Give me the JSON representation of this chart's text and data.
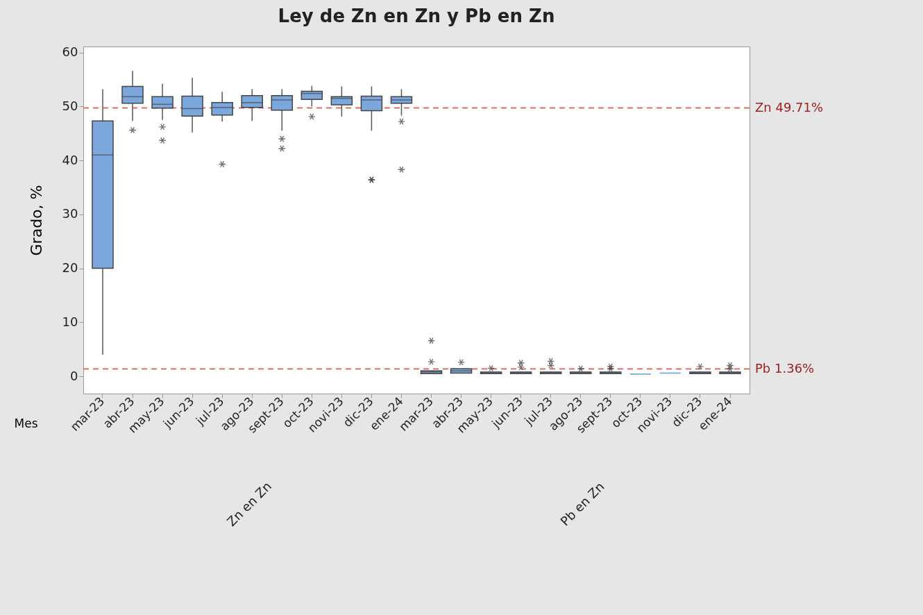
{
  "chart_data": {
    "type": "box",
    "title": "Ley de Zn en Zn y Pb en Zn",
    "xlabel": "Mes",
    "ylabel": "Grado, %",
    "categories": [
      "mar-23",
      "abr-23",
      "may-23",
      "jun-23",
      "jul-23",
      "ago-23",
      "sept-23",
      "oct-23",
      "novi-23",
      "dic-23",
      "ene-24",
      "mar-23",
      "abr-23",
      "may-23",
      "jun-23",
      "jul-23",
      "ago-23",
      "sept-23",
      "oct-23",
      "novi-23",
      "dic-23",
      "ene-24"
    ],
    "ylim": [
      -3.2,
      61.1
    ],
    "yticks": [
      0,
      10,
      20,
      30,
      40,
      50,
      60
    ],
    "grid": false,
    "series": [
      {
        "color": "#7ba7dc",
        "boxes": [
          {
            "low": 4,
            "q1": 20,
            "median": 41,
            "q3": 47.3,
            "high": 53.2
          },
          {
            "low": 47.3,
            "q1": 50.6,
            "median": 51.8,
            "q3": 53.7,
            "high": 56.6,
            "outliers": [
              45.6
            ]
          },
          {
            "low": 47.5,
            "q1": 49.7,
            "median": 50.4,
            "q3": 51.8,
            "high": 54.2,
            "outliers": [
              46.2,
              43.7
            ]
          },
          {
            "low": 45.2,
            "q1": 48.2,
            "median": 49.6,
            "q3": 51.9,
            "high": 55.3
          },
          {
            "low": 47.2,
            "q1": 48.4,
            "median": 49.8,
            "q3": 50.7,
            "high": 52.7,
            "outliers": [
              39.3
            ]
          },
          {
            "low": 47.3,
            "q1": 49.8,
            "median": 50.7,
            "q3": 52,
            "high": 53.2
          },
          {
            "low": 45.5,
            "q1": 49.3,
            "median": 51.2,
            "q3": 52,
            "high": 53.2,
            "outliers": [
              44,
              42.2
            ]
          },
          {
            "low": 50,
            "q1": 51.3,
            "median": 52.4,
            "q3": 52.8,
            "high": 53.8,
            "outliers": [
              48.1
            ]
          },
          {
            "low": 48.1,
            "q1": 50.3,
            "median": 51.5,
            "q3": 51.8,
            "high": 53.7
          },
          {
            "low": 45.5,
            "q1": 49.2,
            "median": 51.2,
            "q3": 51.9,
            "high": 53.7,
            "outliers": [
              36.4,
              36.4
            ]
          },
          {
            "low": 48.3,
            "q1": 50.6,
            "median": 51.2,
            "q3": 51.8,
            "high": 53.2,
            "outliers": [
              47.2,
              38.3
            ]
          },
          {
            "low": 0.5,
            "q1": 0.5,
            "median": 0.8,
            "q3": 1,
            "high": 1,
            "outliers": [
              6.6,
              2.7
            ]
          },
          {
            "low": 0.6,
            "q1": 0.6,
            "median": 1,
            "q3": 1.4,
            "high": 1.4,
            "outliers": [
              2.6
            ]
          },
          {
            "low": 0.5,
            "q1": 0.5,
            "median": 0.7,
            "q3": 0.8,
            "high": 0.8,
            "outliers": [
              1.5
            ]
          },
          {
            "low": 0.5,
            "q1": 0.5,
            "median": 0.7,
            "q3": 0.8,
            "high": 0.8,
            "outliers": [
              2.5,
              1.7
            ]
          },
          {
            "low": 0.5,
            "q1": 0.5,
            "median": 0.7,
            "q3": 0.8,
            "high": 0.8,
            "outliers": [
              2.8,
              2
            ]
          },
          {
            "low": 0.5,
            "q1": 0.5,
            "median": 0.7,
            "q3": 0.8,
            "high": 0.8,
            "outliers": [
              1.4
            ]
          },
          {
            "low": 0.5,
            "q1": 0.5,
            "median": 0.7,
            "q3": 0.8,
            "high": 0.8,
            "outliers": [
              1.8,
              1.4
            ]
          },
          {
            "low": 0.4,
            "q1": 0.4,
            "median": 0.4,
            "q3": 0.4,
            "high": 0.4
          },
          {
            "low": 0.6,
            "q1": 0.6,
            "median": 0.6,
            "q3": 0.6,
            "high": 0.6
          },
          {
            "low": 0.5,
            "q1": 0.5,
            "median": 0.7,
            "q3": 0.8,
            "high": 0.8,
            "outliers": [
              1.8
            ]
          },
          {
            "low": 0.5,
            "q1": 0.5,
            "median": 0.7,
            "q3": 0.8,
            "high": 0.8,
            "outliers": [
              2,
              1.4
            ]
          }
        ]
      }
    ],
    "ref_lines": [
      {
        "axis": "y",
        "value": 49.71,
        "label": "Zn 49.71%",
        "color": "#e8413c",
        "line_style": "dashed"
      },
      {
        "axis": "y",
        "value": 1.36,
        "label": "Pb 1.36%",
        "color": "#e8413c",
        "line_style": "dashed"
      }
    ],
    "annotations": [
      "Zn en Zn",
      "Pb en Zn"
    ]
  }
}
